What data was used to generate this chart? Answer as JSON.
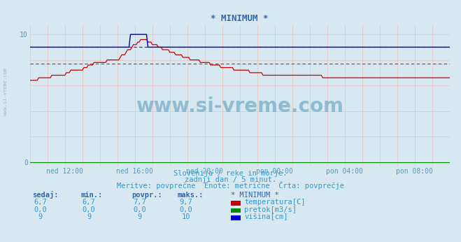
{
  "title": "* MINIMUM *",
  "bg_color": "#d8e8f0",
  "plot_bg_color": "#d8e8f0",
  "grid_color": "#e8b0b0",
  "title_color": "#3366aa",
  "text_color": "#3399cc",
  "label_color": "#5599bb",
  "avg_temp": 7.7,
  "avg_visina": 9.0,
  "xtick_positions": [
    24,
    72,
    120,
    168,
    216,
    264
  ],
  "xtick_labels": [
    "ned 12:00",
    "ned 16:00",
    "ned 20:00",
    "pon 00:00",
    "pon 04:00",
    "pon 08:00"
  ],
  "subtitle1": "Slovenija / reke in morje.",
  "subtitle2": "zadnji dan / 5 minut.",
  "subtitle3": "Meritve: povprečne  Enote: metrične  Črta: povprečje",
  "col_headers": [
    "sedaj:",
    "min.:",
    "povpr.:",
    "maks.:",
    "* MINIMUM *"
  ],
  "row1": [
    "6,7",
    "6,7",
    "7,7",
    "9,7",
    "temperatura[C]"
  ],
  "row2": [
    "0,0",
    "0,0",
    "0,0",
    "0,0",
    "pretok[m3/s]"
  ],
  "row3": [
    "9",
    "9",
    "9",
    "10",
    "višina[cm]"
  ],
  "legend_colors": [
    "#cc0000",
    "#008800",
    "#0000cc"
  ],
  "temp_color": "#cc0000",
  "pretok_color": "#008800",
  "visina_color": "#0000bb",
  "watermark": "www.si-vreme.com",
  "side_text": "www.si-vreme.com"
}
